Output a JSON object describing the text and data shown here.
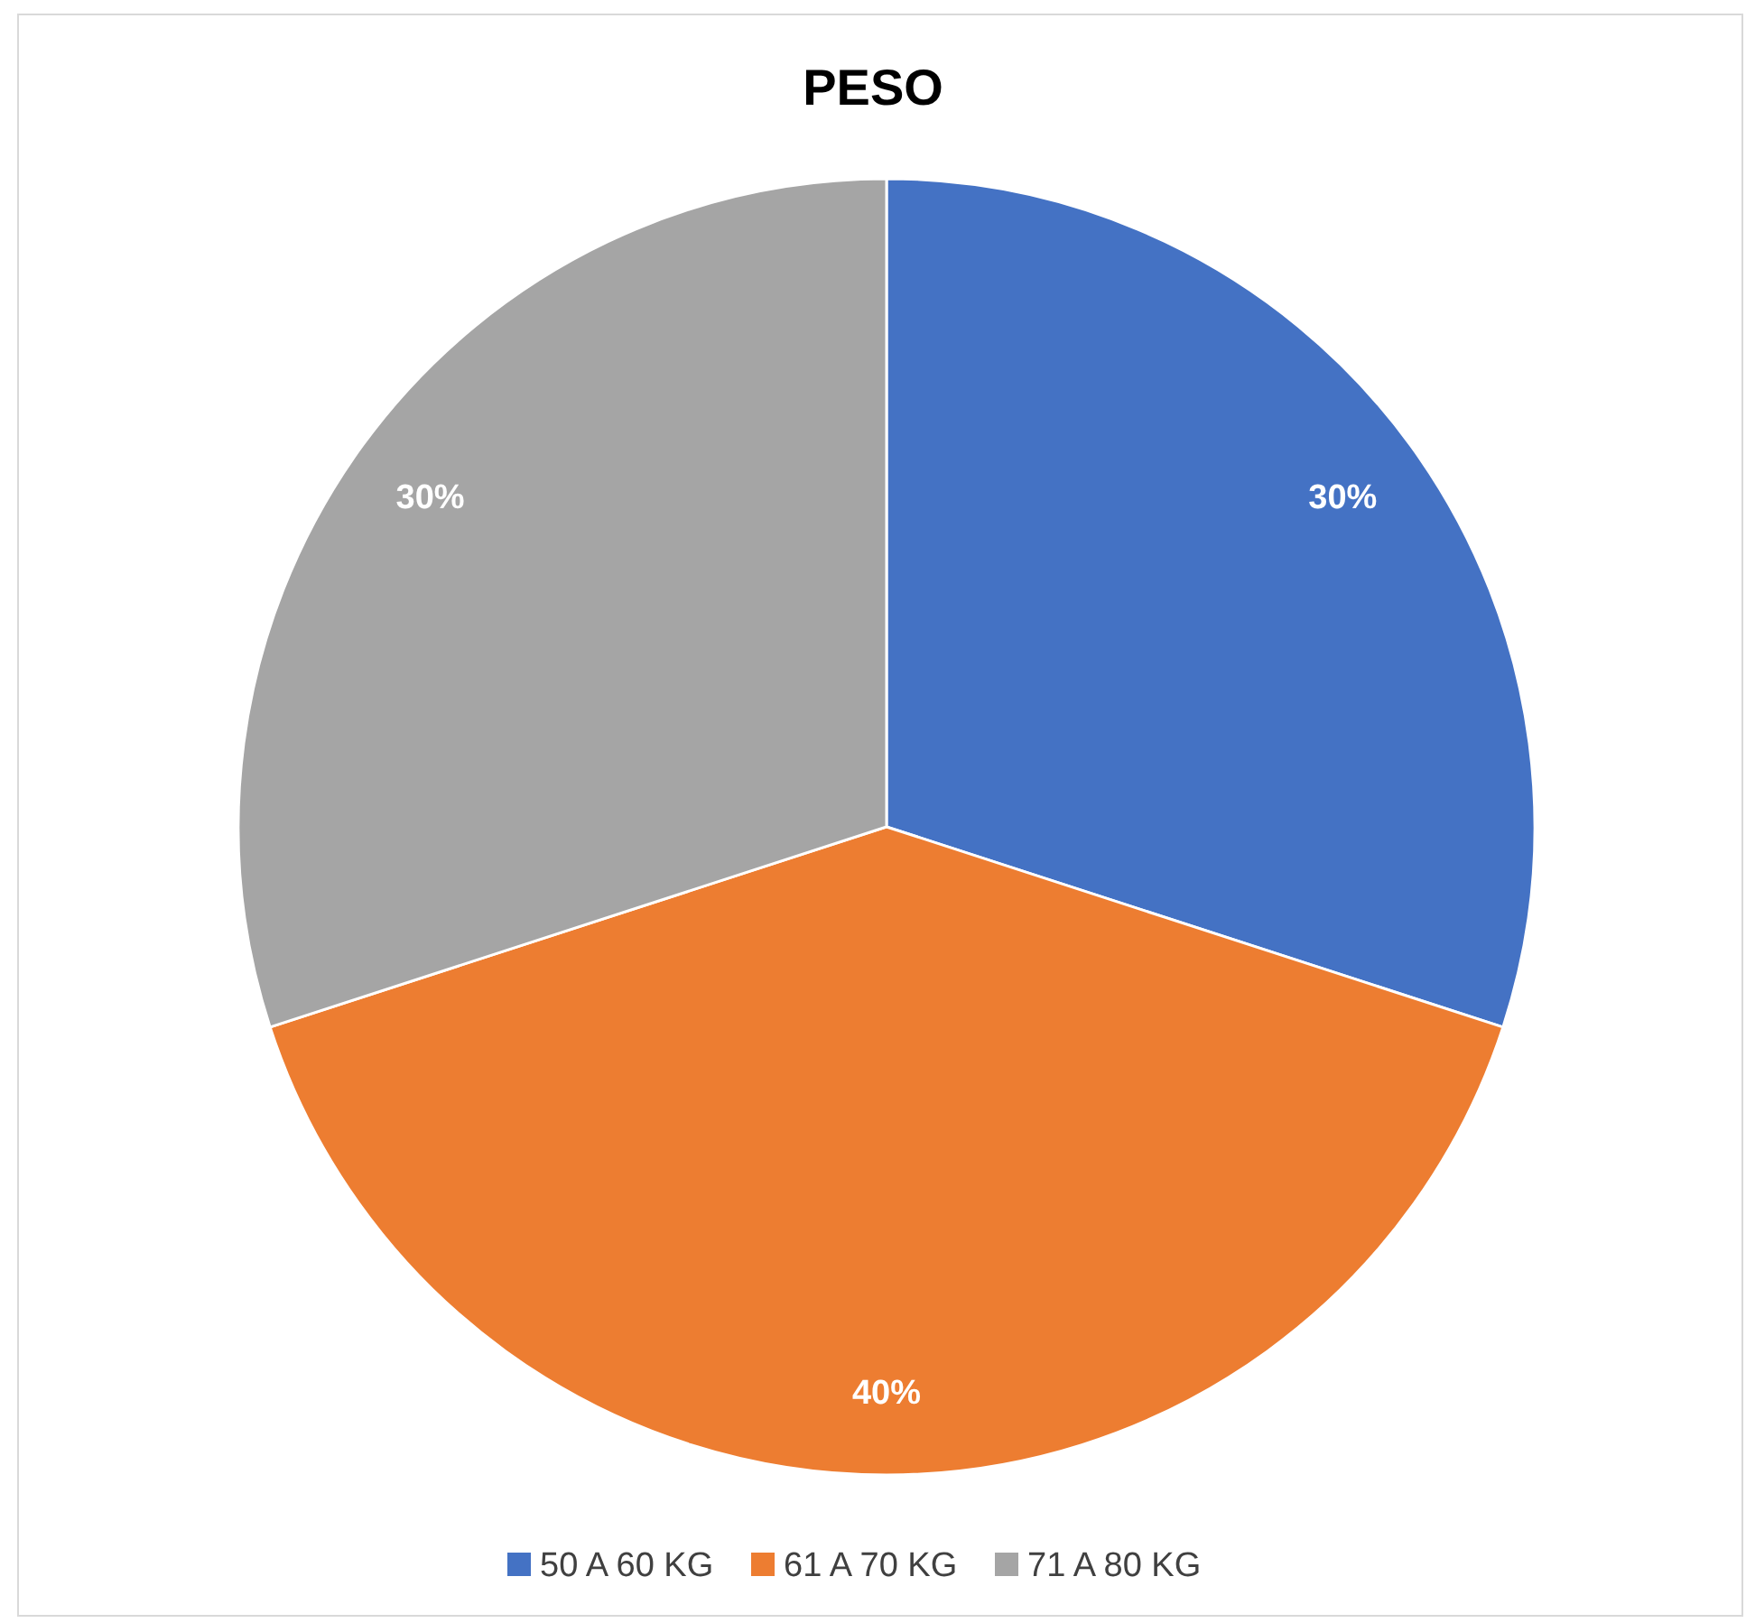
{
  "chart_data": {
    "type": "pie",
    "title": "PESO",
    "categories": [
      "50 A 60 KG",
      "61 A 70 KG",
      "71 A 80 KG"
    ],
    "values": [
      30,
      40,
      30
    ],
    "colors": [
      "#4472c4",
      "#ed7d31",
      "#a5a5a5"
    ],
    "value_labels": [
      "30%",
      "40%",
      "30%"
    ],
    "legend": "bottom"
  }
}
